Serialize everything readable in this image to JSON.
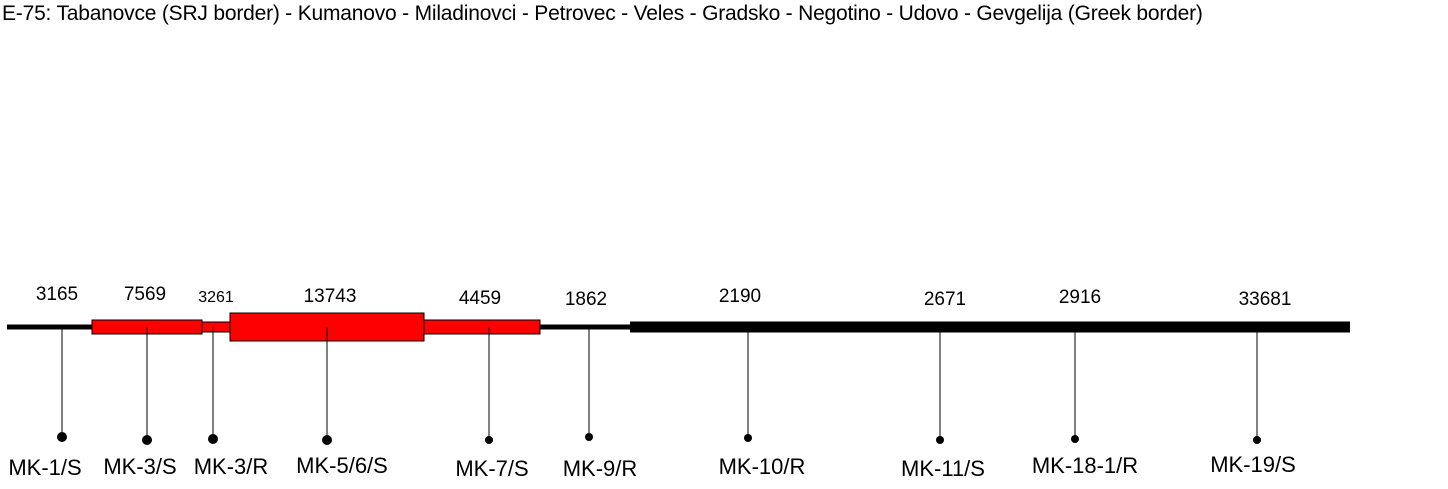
{
  "title": "E-75: Tabanovce (SRJ border) - Kumanovo - Miladinovci - Petrovec - Veles - Gradsko - Negotino - Udovo - Gevgelija (Greek border)",
  "colors": {
    "line": "#000000",
    "heavy": "#ff0000"
  },
  "segments": [
    {
      "count": "3165",
      "style": "thin-black"
    },
    {
      "count": "7569",
      "style": "red-medium"
    },
    {
      "count": "3261",
      "style": "red-thin"
    },
    {
      "count": "13743",
      "style": "red-thick"
    },
    {
      "count": "4459",
      "style": "red-medium"
    },
    {
      "count": "1862",
      "style": "thin-black"
    },
    {
      "count": "2190",
      "style": "thick-black"
    },
    {
      "count": "2671",
      "style": "thick-black"
    },
    {
      "count": "2916",
      "style": "thick-black"
    },
    {
      "count": "33681",
      "style": "thick-black"
    }
  ],
  "stations": [
    {
      "label": "MK-1/S"
    },
    {
      "label": "MK-3/S"
    },
    {
      "label": "MK-3/R"
    },
    {
      "label": "MK-5/6/S"
    },
    {
      "label": "MK-7/S"
    },
    {
      "label": "MK-9/R"
    },
    {
      "label": "MK-10/R"
    },
    {
      "label": "MK-11/S"
    },
    {
      "label": "MK-18-1/R"
    },
    {
      "label": "MK-19/S"
    }
  ]
}
